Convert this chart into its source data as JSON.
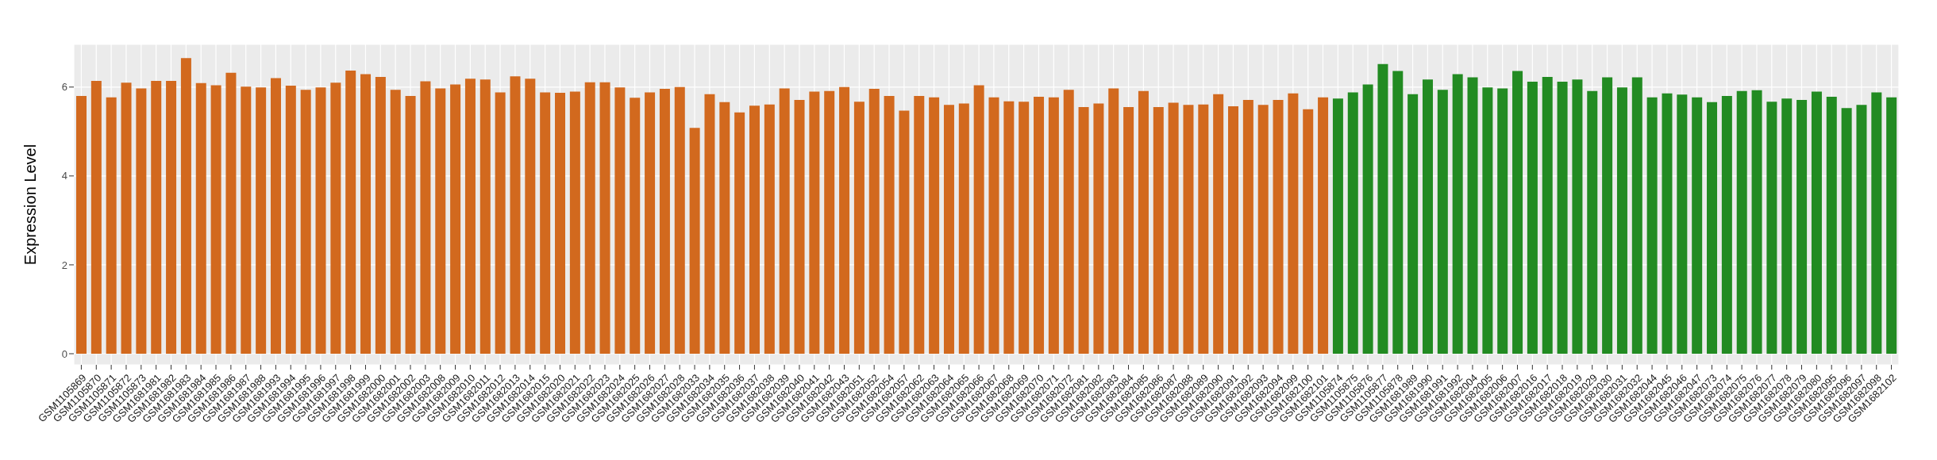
{
  "chart_data": {
    "type": "bar",
    "ylabel": "Expression Level",
    "categories": [
      "GSM1105869",
      "GSM1105870",
      "GSM1105871",
      "GSM1105872",
      "GSM1105873",
      "GSM1681981",
      "GSM1681982",
      "GSM1681983",
      "GSM1681984",
      "GSM1681985",
      "GSM1681986",
      "GSM1681987",
      "GSM1681988",
      "GSM1681993",
      "GSM1681994",
      "GSM1681995",
      "GSM1681996",
      "GSM1681997",
      "GSM1681998",
      "GSM1681999",
      "GSM1682000",
      "GSM1682001",
      "GSM1682002",
      "GSM1682003",
      "GSM1682008",
      "GSM1682009",
      "GSM1682010",
      "GSM1682011",
      "GSM1682012",
      "GSM1682013",
      "GSM1682014",
      "GSM1682015",
      "GSM1682020",
      "GSM1682021",
      "GSM1682022",
      "GSM1682023",
      "GSM1682024",
      "GSM1682025",
      "GSM1682026",
      "GSM1682027",
      "GSM1682028",
      "GSM1682033",
      "GSM1682034",
      "GSM1682035",
      "GSM1682036",
      "GSM1682037",
      "GSM1682038",
      "GSM1682039",
      "GSM1682040",
      "GSM1682041",
      "GSM1682042",
      "GSM1682043",
      "GSM1682051",
      "GSM1682052",
      "GSM1682054",
      "GSM1682057",
      "GSM1682062",
      "GSM1682063",
      "GSM1682064",
      "GSM1682065",
      "GSM1682066",
      "GSM1682067",
      "GSM1682068",
      "GSM1682069",
      "GSM1682070",
      "GSM1682071",
      "GSM1682072",
      "GSM1682081",
      "GSM1682082",
      "GSM1682083",
      "GSM1682084",
      "GSM1682085",
      "GSM1682086",
      "GSM1682087",
      "GSM1682088",
      "GSM1682089",
      "GSM1682090",
      "GSM1682091",
      "GSM1682092",
      "GSM1682093",
      "GSM1682094",
      "GSM1682099",
      "GSM1682100",
      "GSM1682101",
      "GSM1105874",
      "GSM1105875",
      "GSM1105876",
      "GSM1105877",
      "GSM1105878",
      "GSM1681989",
      "GSM1681990",
      "GSM1681991",
      "GSM1681992",
      "GSM1682004",
      "GSM1682005",
      "GSM1682006",
      "GSM1682007",
      "GSM1682016",
      "GSM1682017",
      "GSM1682018",
      "GSM1682019",
      "GSM1682029",
      "GSM1682030",
      "GSM1682031",
      "GSM1682032",
      "GSM1682044",
      "GSM1682045",
      "GSM1682046",
      "GSM1682047",
      "GSM1682073",
      "GSM1682074",
      "GSM1682075",
      "GSM1682076",
      "GSM1682077",
      "GSM1682078",
      "GSM1682079",
      "GSM1682080",
      "GSM1682095",
      "GSM1682096",
      "GSM1682097",
      "GSM1682098",
      "GSM1682102"
    ],
    "values": [
      5.8,
      6.14,
      5.77,
      6.1,
      5.97,
      6.14,
      6.14,
      6.65,
      6.09,
      6.04,
      6.32,
      6.01,
      5.99,
      6.2,
      6.03,
      5.94,
      5.99,
      6.1,
      6.37,
      6.29,
      6.23,
      5.94,
      5.8,
      6.13,
      5.97,
      6.06,
      6.19,
      6.17,
      5.88,
      6.24,
      6.19,
      5.88,
      5.87,
      5.9,
      6.11,
      6.11,
      5.99,
      5.76,
      5.88,
      5.96,
      6.0,
      5.08,
      5.84,
      5.66,
      5.43,
      5.58,
      5.61,
      5.97,
      5.71,
      5.9,
      5.91,
      6.0,
      5.67,
      5.96,
      5.8,
      5.47,
      5.8,
      5.77,
      5.6,
      5.63,
      6.04,
      5.77,
      5.68,
      5.67,
      5.78,
      5.77,
      5.94,
      5.55,
      5.63,
      5.97,
      5.55,
      5.91,
      5.55,
      5.65,
      5.6,
      5.61,
      5.84,
      5.57,
      5.71,
      5.6,
      5.71,
      5.86,
      5.5,
      5.77,
      5.74,
      5.88,
      6.06,
      6.52,
      6.36,
      5.84,
      6.17,
      5.94,
      6.29,
      6.22,
      5.99,
      5.97,
      6.36,
      6.12,
      6.23,
      6.12,
      6.17,
      5.91,
      6.22,
      5.99,
      6.22,
      5.77,
      5.86,
      5.83,
      5.77,
      5.66,
      5.8,
      5.91,
      5.93,
      5.67,
      5.74,
      5.71,
      5.9,
      5.78,
      5.53,
      5.6,
      5.88,
      5.77
    ],
    "colors": [
      "#d2691e",
      "#d2691e",
      "#d2691e",
      "#d2691e",
      "#d2691e",
      "#d2691e",
      "#d2691e",
      "#d2691e",
      "#d2691e",
      "#d2691e",
      "#d2691e",
      "#d2691e",
      "#d2691e",
      "#d2691e",
      "#d2691e",
      "#d2691e",
      "#d2691e",
      "#d2691e",
      "#d2691e",
      "#d2691e",
      "#d2691e",
      "#d2691e",
      "#d2691e",
      "#d2691e",
      "#d2691e",
      "#d2691e",
      "#d2691e",
      "#d2691e",
      "#d2691e",
      "#d2691e",
      "#d2691e",
      "#d2691e",
      "#d2691e",
      "#d2691e",
      "#d2691e",
      "#d2691e",
      "#d2691e",
      "#d2691e",
      "#d2691e",
      "#d2691e",
      "#d2691e",
      "#d2691e",
      "#d2691e",
      "#d2691e",
      "#d2691e",
      "#d2691e",
      "#d2691e",
      "#d2691e",
      "#d2691e",
      "#d2691e",
      "#d2691e",
      "#d2691e",
      "#d2691e",
      "#d2691e",
      "#d2691e",
      "#d2691e",
      "#d2691e",
      "#d2691e",
      "#d2691e",
      "#d2691e",
      "#d2691e",
      "#d2691e",
      "#d2691e",
      "#d2691e",
      "#d2691e",
      "#d2691e",
      "#d2691e",
      "#d2691e",
      "#d2691e",
      "#d2691e",
      "#d2691e",
      "#d2691e",
      "#d2691e",
      "#d2691e",
      "#d2691e",
      "#d2691e",
      "#d2691e",
      "#d2691e",
      "#d2691e",
      "#d2691e",
      "#d2691e",
      "#d2691e",
      "#d2691e",
      "#d2691e",
      "#228b22",
      "#228b22",
      "#228b22",
      "#228b22",
      "#228b22",
      "#228b22",
      "#228b22",
      "#228b22",
      "#228b22",
      "#228b22",
      "#228b22",
      "#228b22",
      "#228b22",
      "#228b22",
      "#228b22",
      "#228b22",
      "#228b22",
      "#228b22",
      "#228b22",
      "#228b22",
      "#228b22",
      "#228b22",
      "#228b22",
      "#228b22",
      "#228b22",
      "#228b22",
      "#228b22",
      "#228b22",
      "#228b22",
      "#228b22",
      "#228b22",
      "#228b22",
      "#228b22",
      "#228b22",
      "#228b22",
      "#228b22",
      "#228b22",
      "#228b22"
    ],
    "ylim": [
      -0.25,
      6.96
    ],
    "yticks": [
      0,
      2,
      4,
      6
    ],
    "grid": true,
    "legend": false
  }
}
